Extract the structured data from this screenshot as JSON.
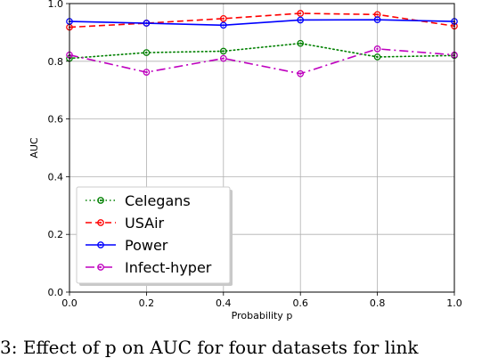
{
  "chart_data": {
    "type": "line",
    "xlabel": "Probability p",
    "ylabel": "AUC",
    "xlim": [
      0.0,
      1.0
    ],
    "ylim": [
      0.0,
      1.0
    ],
    "x_ticks": [
      "0.0",
      "0.2",
      "0.4",
      "0.6",
      "0.8",
      "1.0"
    ],
    "y_ticks": [
      "0.0",
      "0.2",
      "0.4",
      "0.6",
      "0.8",
      "1.0"
    ],
    "grid": true,
    "legend_position": "lower-left",
    "x": [
      0.0,
      0.2,
      0.4,
      0.6,
      0.8,
      1.0
    ],
    "series": [
      {
        "name": "Celegans",
        "values": [
          0.81,
          0.83,
          0.835,
          0.862,
          0.815,
          0.82
        ],
        "color": "#008000",
        "style": "dotted"
      },
      {
        "name": "USAir",
        "values": [
          0.918,
          0.932,
          0.948,
          0.966,
          0.962,
          0.922
        ],
        "color": "#ff0000",
        "style": "dashed"
      },
      {
        "name": "Power",
        "values": [
          0.938,
          0.932,
          0.925,
          0.943,
          0.944,
          0.938
        ],
        "color": "#0000ff",
        "style": "solid"
      },
      {
        "name": "Infect-hyper",
        "values": [
          0.822,
          0.762,
          0.81,
          0.757,
          0.843,
          0.822
        ],
        "color": "#bf00bf",
        "style": "dashdot"
      }
    ]
  },
  "caption_fragment": "3: Effect of p on AUC for four datasets for link"
}
